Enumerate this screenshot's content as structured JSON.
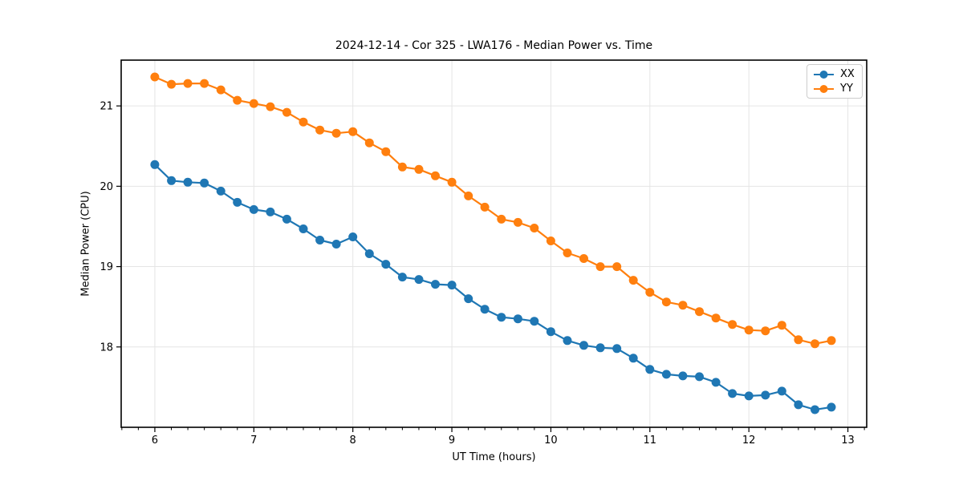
{
  "chart_data": {
    "type": "line",
    "title": "2024-12-14 - Cor 325 - LWA176 - Median Power vs. Time",
    "xlabel": "UT Time (hours)",
    "ylabel": "Median Power (CPU)",
    "xlim": [
      5.66,
      13.19
    ],
    "ylim": [
      17.0,
      21.57
    ],
    "xticks": [
      6,
      7,
      8,
      9,
      10,
      11,
      12,
      13
    ],
    "yticks": [
      18,
      19,
      20,
      21
    ],
    "x_minor_step_hours": 0.166667,
    "grid": true,
    "grid_color": "#e5e5e5",
    "legend_position": "upper right",
    "x": [
      6.0,
      6.167,
      6.333,
      6.5,
      6.667,
      6.833,
      7.0,
      7.167,
      7.333,
      7.5,
      7.667,
      7.833,
      8.0,
      8.167,
      8.333,
      8.5,
      8.667,
      8.833,
      9.0,
      9.167,
      9.333,
      9.5,
      9.667,
      9.833,
      10.0,
      10.167,
      10.333,
      10.5,
      10.667,
      10.833,
      11.0,
      11.167,
      11.333,
      11.5,
      11.667,
      11.833,
      12.0,
      12.167,
      12.333,
      12.5,
      12.667,
      12.833
    ],
    "series": [
      {
        "name": "XX",
        "color": "#1f77b4",
        "values": [
          20.27,
          20.07,
          20.05,
          20.04,
          19.94,
          19.8,
          19.71,
          19.68,
          19.59,
          19.47,
          19.33,
          19.28,
          19.37,
          19.16,
          19.03,
          18.87,
          18.84,
          18.78,
          18.77,
          18.6,
          18.47,
          18.37,
          18.35,
          18.32,
          18.19,
          18.08,
          18.02,
          17.99,
          17.98,
          17.86,
          17.72,
          17.66,
          17.64,
          17.63,
          17.56,
          17.42,
          17.39,
          17.4,
          17.45,
          17.28,
          17.22,
          17.25
        ]
      },
      {
        "name": "YY",
        "color": "#ff7f0e",
        "values": [
          21.36,
          21.27,
          21.28,
          21.28,
          21.2,
          21.07,
          21.03,
          20.99,
          20.92,
          20.8,
          20.7,
          20.66,
          20.68,
          20.54,
          20.43,
          20.24,
          20.21,
          20.13,
          20.05,
          19.88,
          19.74,
          19.59,
          19.55,
          19.48,
          19.32,
          19.17,
          19.1,
          19.0,
          19.0,
          18.83,
          18.68,
          18.56,
          18.52,
          18.44,
          18.36,
          18.28,
          18.21,
          18.2,
          18.27,
          18.09,
          18.04,
          18.08
        ]
      }
    ]
  }
}
